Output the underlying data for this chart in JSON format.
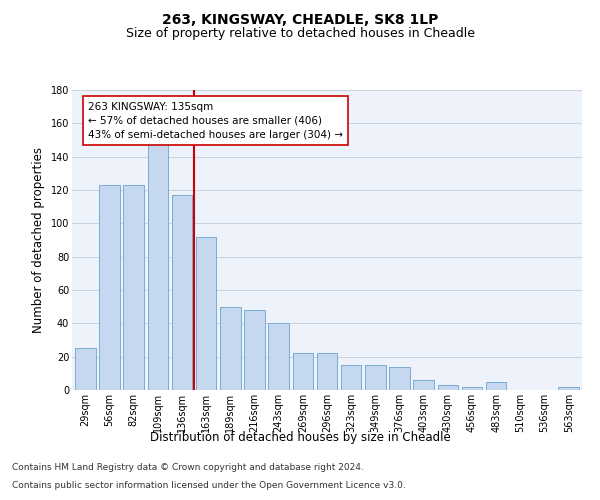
{
  "title1": "263, KINGSWAY, CHEADLE, SK8 1LP",
  "title2": "Size of property relative to detached houses in Cheadle",
  "xlabel": "Distribution of detached houses by size in Cheadle",
  "ylabel": "Number of detached properties",
  "categories": [
    "29sqm",
    "56sqm",
    "82sqm",
    "109sqm",
    "136sqm",
    "163sqm",
    "189sqm",
    "216sqm",
    "243sqm",
    "269sqm",
    "296sqm",
    "323sqm",
    "349sqm",
    "376sqm",
    "403sqm",
    "430sqm",
    "456sqm",
    "483sqm",
    "510sqm",
    "536sqm",
    "563sqm"
  ],
  "values": [
    25,
    123,
    123,
    150,
    117,
    92,
    50,
    48,
    40,
    22,
    22,
    15,
    15,
    14,
    6,
    3,
    2,
    5,
    0,
    0,
    2
  ],
  "bar_color": "#c5d8ef",
  "bar_edge_color": "#7aadd4",
  "vline_x_index": 4.5,
  "vline_color": "#cc0000",
  "annotation_text": "263 KINGSWAY: 135sqm\n← 57% of detached houses are smaller (406)\n43% of semi-detached houses are larger (304) →",
  "annotation_box_color": "#ffffff",
  "annotation_box_edge_color": "#cc0000",
  "ylim": [
    0,
    180
  ],
  "yticks": [
    0,
    20,
    40,
    60,
    80,
    100,
    120,
    140,
    160,
    180
  ],
  "footer1": "Contains HM Land Registry data © Crown copyright and database right 2024.",
  "footer2": "Contains public sector information licensed under the Open Government Licence v3.0.",
  "bg_color": "#edf2fb",
  "grid_color": "#c8d0e0",
  "title_fontsize": 10,
  "subtitle_fontsize": 9,
  "tick_fontsize": 7,
  "label_fontsize": 8.5,
  "footer_fontsize": 6.5,
  "annotation_fontsize": 7.5
}
